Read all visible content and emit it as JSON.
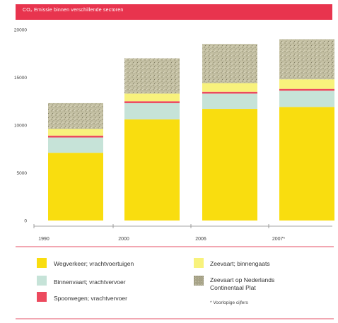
{
  "chart_data": {
    "type": "bar",
    "stacked": true,
    "title": "CO₂ Emissie binnen verschillende sectoren",
    "categories": [
      "1990",
      "2000",
      "2006",
      "2007*"
    ],
    "ylim": [
      0,
      20000
    ],
    "yticks": [
      "0",
      "5000",
      "10000",
      "15000",
      "20000"
    ],
    "ytick_values": [
      0,
      5000,
      10000,
      15000,
      20000
    ],
    "grid": false,
    "series": [
      {
        "name": "Wegverkeer; vrachtvoertuigen",
        "color": "#f9dd0f",
        "pattern": "solid",
        "values": [
          7100,
          10600,
          11700,
          11900
        ]
      },
      {
        "name": "Binnenvaart; vrachtvervoer",
        "color": "#c6e3d8",
        "pattern": "solid",
        "values": [
          1600,
          1700,
          1600,
          1700
        ]
      },
      {
        "name": "Spoorwegen; vrachtvervoer",
        "color": "#ec4a5e",
        "pattern": "solid",
        "values": [
          200,
          200,
          200,
          200
        ]
      },
      {
        "name": "Zeevaart; binnengaats",
        "color": "#f8f27c",
        "pattern": "solid",
        "values": [
          700,
          800,
          900,
          1000
        ]
      },
      {
        "name": "Zeevaart op Nederlands Continentaal Plat",
        "color": "#b9b596",
        "pattern": "speckle",
        "values": [
          2700,
          3700,
          4100,
          4200
        ]
      }
    ],
    "footnote": "* Voorlopige cijfers"
  },
  "colors": {
    "title_bar": "#e8344e",
    "divider": "#f2a7b2",
    "axis": "#888888"
  }
}
